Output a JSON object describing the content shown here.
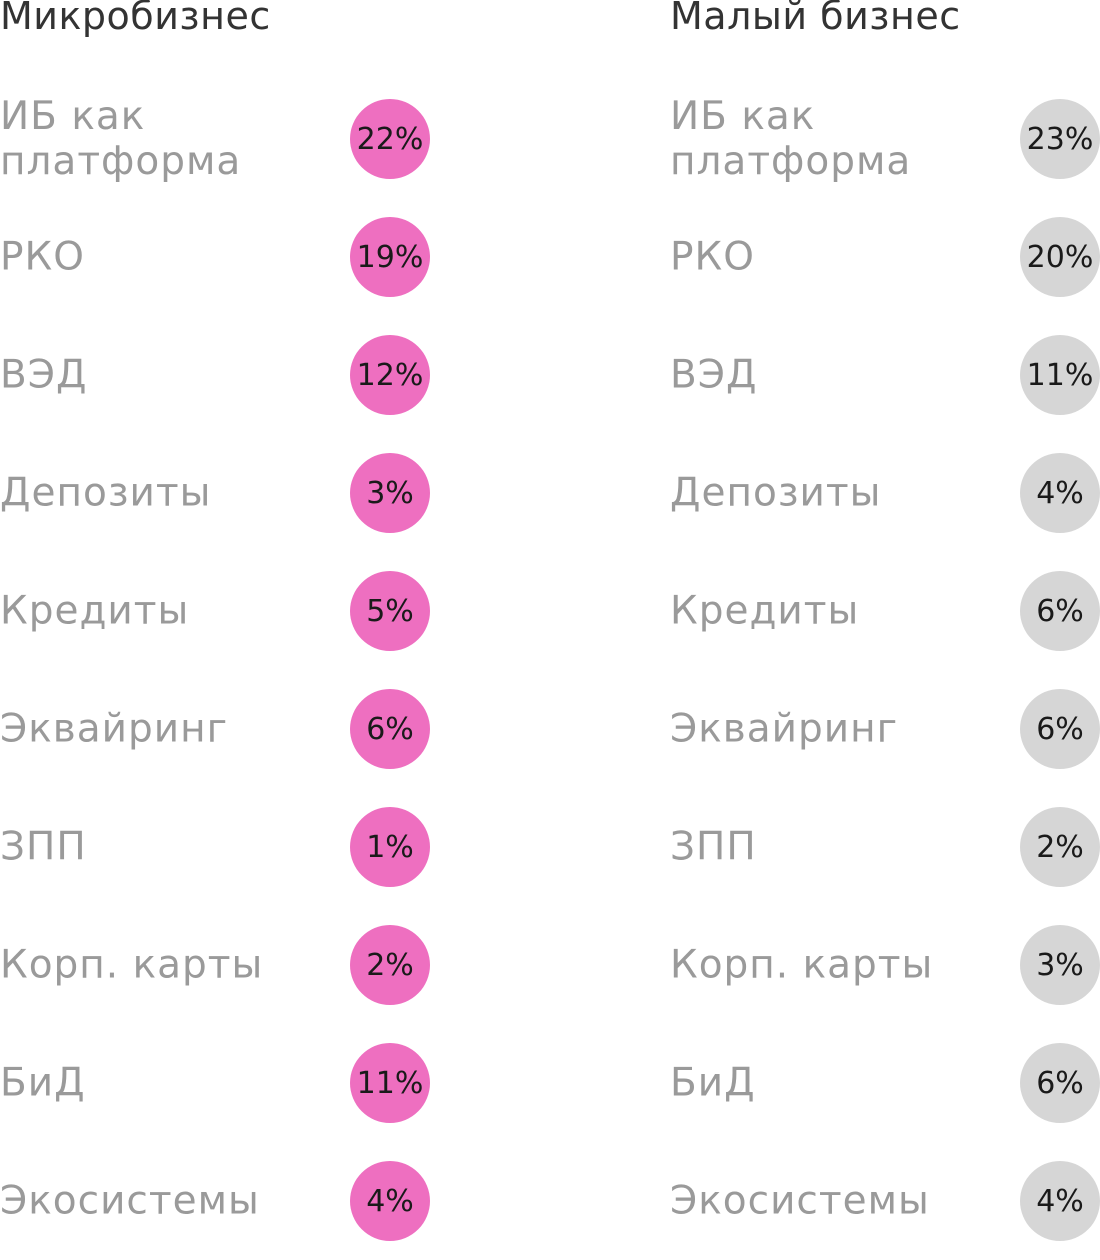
{
  "chart_data": {
    "type": "table",
    "colors": {
      "micro_bubble": "#ee6fc0",
      "small_bubble": "#d6d6d6",
      "label_text": "#9a9a9a",
      "title_text": "#333333"
    },
    "categories": [
      "ИБ как\nплатформа",
      "РКО",
      "ВЭД",
      "Депозиты",
      "Кредиты",
      "Эквайринг",
      "ЗПП",
      "Корп. карты",
      "БиД",
      "Экосистемы"
    ],
    "series": [
      {
        "name": "Микробизнес",
        "color": "#ee6fc0",
        "values": [
          22,
          19,
          12,
          3,
          5,
          6,
          1,
          2,
          11,
          4
        ],
        "labels": [
          "22%",
          "19%",
          "12%",
          "3%",
          "5%",
          "6%",
          "1%",
          "2%",
          "11%",
          "4%"
        ]
      },
      {
        "name": "Малый бизнес",
        "color": "#d6d6d6",
        "values": [
          23,
          20,
          11,
          4,
          6,
          6,
          2,
          3,
          6,
          4
        ],
        "labels": [
          "23%",
          "20%",
          "11%",
          "4%",
          "6%",
          "6%",
          "2%",
          "3%",
          "6%",
          "4%"
        ]
      }
    ]
  }
}
